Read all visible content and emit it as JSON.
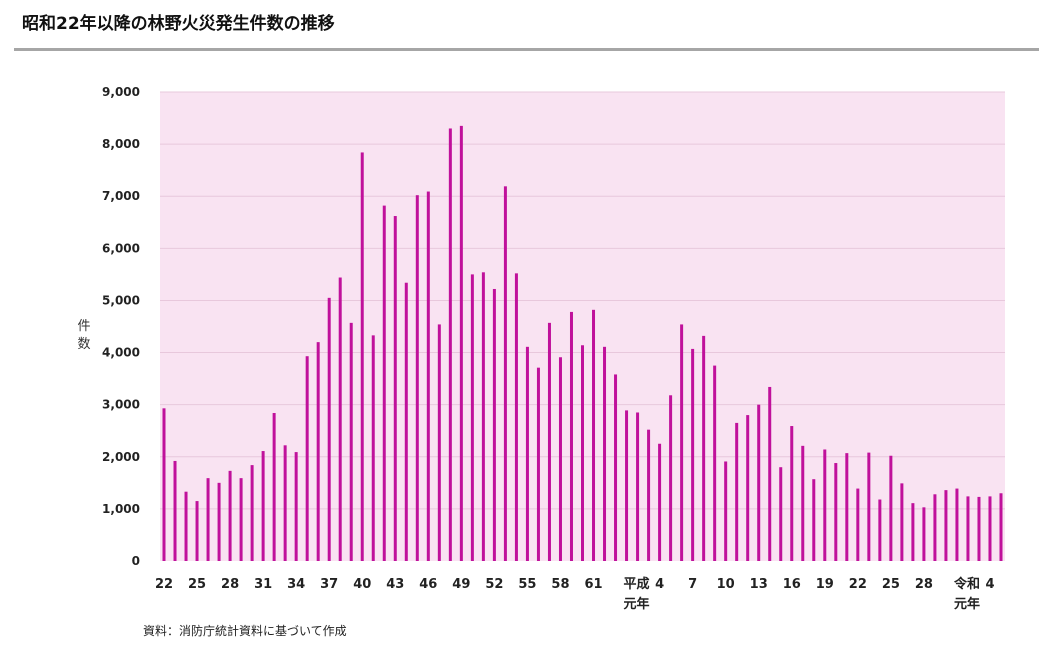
{
  "title": "昭和22年以降の林野火災発生件数の推移",
  "source": "資料：消防庁統計資料に基づいて作成",
  "chart_data": {
    "type": "bar",
    "title": "昭和22年以降の林野火災発生件数の推移",
    "ylabel": "件数",
    "xlabel": "",
    "ylim": [
      0,
      9000
    ],
    "yticks": [
      "0",
      "1,000",
      "2,000",
      "3,000",
      "4,000",
      "5,000",
      "6,000",
      "7,000",
      "8,000",
      "9,000"
    ],
    "grid": true,
    "plot_background": "#f9e3f2",
    "bar_color": "#c0119b",
    "categories": [
      "22",
      "",
      "",
      "25",
      "",
      "",
      "28",
      "",
      "",
      "31",
      "",
      "",
      "34",
      "",
      "",
      "37",
      "",
      "",
      "40",
      "",
      "",
      "43",
      "",
      "",
      "46",
      "",
      "",
      "49",
      "",
      "",
      "52",
      "",
      "",
      "55",
      "",
      "",
      "58",
      "",
      "",
      "61",
      "",
      "",
      "平成\n元年",
      "",
      "",
      "4",
      "",
      "",
      "7",
      "",
      "",
      "10",
      "",
      "",
      "13",
      "",
      "",
      "16",
      "",
      "",
      "19",
      "",
      "",
      "22",
      "",
      "",
      "25",
      "",
      "",
      "28",
      "",
      "",
      "令和\n元年",
      "",
      "",
      "4",
      ""
    ],
    "values": [
      2930,
      1920,
      1330,
      1150,
      1590,
      1500,
      1730,
      1590,
      1840,
      2110,
      2840,
      2220,
      2090,
      3930,
      4200,
      5050,
      5440,
      4570,
      7840,
      4330,
      6820,
      6620,
      5340,
      7020,
      7090,
      4540,
      8300,
      8350,
      5500,
      5540,
      5220,
      7190,
      5520,
      4110,
      3710,
      4570,
      3910,
      4780,
      4140,
      4820,
      4110,
      3580,
      2890,
      2850,
      2520,
      2250,
      3180,
      4540,
      4070,
      4320,
      3750,
      1910,
      2650,
      2800,
      3000,
      3340,
      1800,
      2590,
      2210,
      1570,
      2140,
      1880,
      2070,
      1390,
      2080,
      1180,
      2020,
      1490,
      1110,
      1030,
      1280,
      1360,
      1390,
      1240,
      1230,
      1240,
      1300
    ]
  }
}
